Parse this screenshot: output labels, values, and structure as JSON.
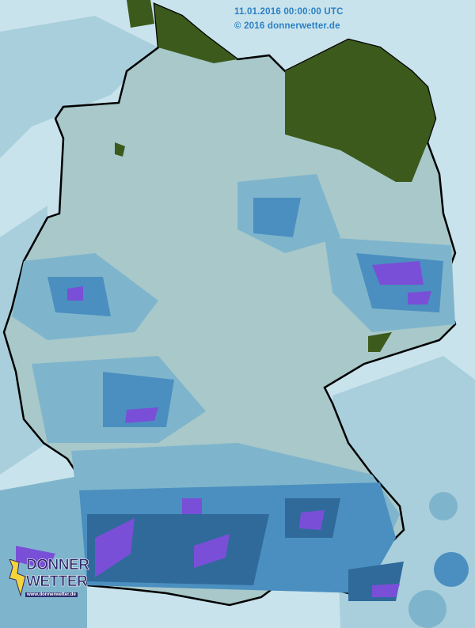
{
  "header": {
    "timestamp": "11.01.2016 00:00:00 UTC",
    "copyright": "© 2016 donnerwetter.de"
  },
  "logo": {
    "line1": "DONNER",
    "line2": "WETTER",
    "url": "www.donnerwetter.de"
  },
  "map": {
    "region": "Germany",
    "type": "precipitation radar",
    "colors": {
      "background": "#c9e3ec",
      "light": "#a9cfdc",
      "land_base": "#a8c8ca",
      "medium": "#7fb5cc",
      "strong": "#4a8fbf",
      "heavy": "#2f6a9a",
      "very_heavy": "#3e4f86",
      "extreme": "#7a4fd8",
      "no_data_land": "#3b5a1c",
      "border": "#000000"
    }
  }
}
